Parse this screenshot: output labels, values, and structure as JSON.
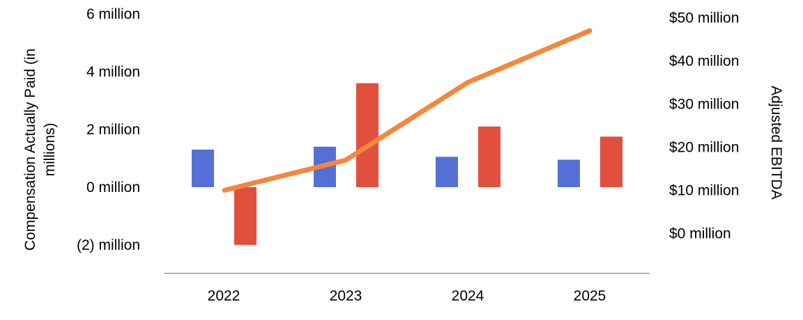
{
  "chart_data": {
    "type": "bar",
    "categories": [
      "2022",
      "2023",
      "2024",
      "2025"
    ],
    "series": [
      {
        "type": "bar",
        "axis": "left",
        "color": "#5470d6",
        "values": [
          1.3,
          1.4,
          1.05,
          0.95
        ]
      },
      {
        "type": "bar",
        "axis": "left",
        "color": "#e0503c",
        "values": [
          -2.0,
          3.6,
          2.1,
          1.75
        ]
      },
      {
        "type": "line",
        "axis": "right",
        "color": "#f6863b",
        "values": [
          10,
          17,
          35,
          47
        ]
      }
    ],
    "y_left": {
      "label_line1": "Compensation Actually Paid (in",
      "label_line2": "millions)",
      "range": [
        -3,
        6
      ],
      "ticks": [
        6,
        4,
        2,
        0,
        -2
      ],
      "tick_labels": [
        "6 million",
        "4 million",
        "2 million",
        "0 million",
        "(2) million"
      ]
    },
    "y_right": {
      "label": "Adjusted EBITDA",
      "range": [
        -10,
        50
      ],
      "ticks": [
        50,
        40,
        30,
        20,
        10,
        0
      ],
      "tick_labels": [
        "$50 million",
        "$40 million",
        "$30 million",
        "$20 million",
        "$10 million",
        "$0 million"
      ]
    },
    "grid": false,
    "legend": "none"
  }
}
